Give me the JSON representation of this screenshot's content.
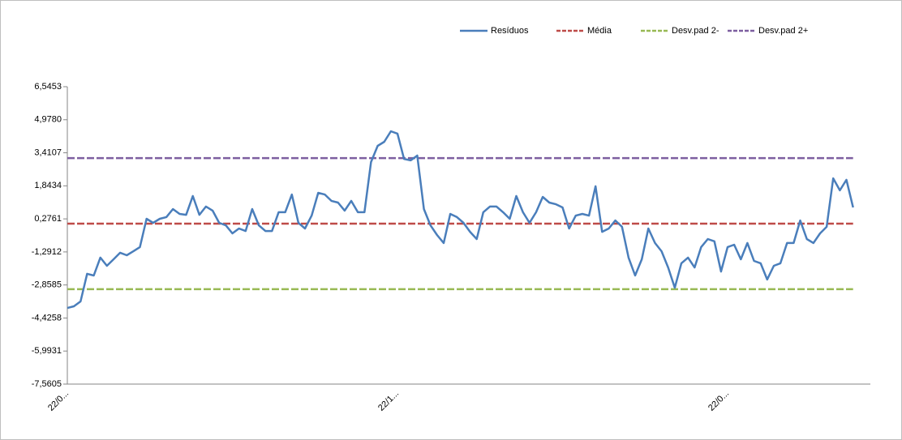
{
  "chart_data": {
    "type": "line",
    "categories": [
      "22/0...",
      null,
      null,
      null,
      null,
      null,
      null,
      null,
      null,
      null,
      null,
      null,
      null,
      null,
      null,
      null,
      null,
      null,
      null,
      null,
      null,
      null,
      null,
      null,
      null,
      null,
      null,
      null,
      null,
      null,
      null,
      null,
      null,
      null,
      null,
      null,
      null,
      null,
      null,
      null,
      null,
      null,
      null,
      null,
      null,
      null,
      null,
      null,
      null,
      null,
      "22/1...",
      null,
      null,
      null,
      null,
      null,
      null,
      null,
      null,
      null,
      null,
      null,
      null,
      null,
      null,
      null,
      null,
      null,
      null,
      null,
      null,
      null,
      null,
      null,
      null,
      null,
      null,
      null,
      null,
      null,
      null,
      null,
      null,
      null,
      null,
      null,
      null,
      null,
      null,
      null,
      null,
      null,
      null,
      null,
      null,
      null,
      null,
      null,
      null,
      null,
      "22/0...",
      null,
      null,
      null,
      null,
      null,
      null,
      null,
      null,
      null,
      null,
      null,
      null,
      null,
      null,
      null,
      null,
      null,
      null,
      null
    ],
    "series": [
      {
        "name": "Resíduos",
        "color": "#4a7ebb",
        "dashed": false,
        "values": [
          -3.95,
          -3.87,
          -3.64,
          -2.33,
          -2.41,
          -1.56,
          -1.95,
          -1.64,
          -1.33,
          -1.45,
          -1.26,
          -1.06,
          0.28,
          0.09,
          0.28,
          0.36,
          0.74,
          0.51,
          0.47,
          1.36,
          0.47,
          0.86,
          0.67,
          0.09,
          -0.03,
          -0.41,
          -0.18,
          -0.3,
          0.74,
          -0.03,
          -0.3,
          -0.3,
          0.59,
          0.59,
          1.43,
          0.09,
          -0.18,
          0.43,
          1.51,
          1.43,
          1.13,
          1.05,
          0.67,
          1.13,
          0.59,
          0.59,
          2.97,
          3.74,
          3.93,
          4.43,
          4.32,
          3.12,
          3.05,
          3.28,
          0.74,
          -0.03,
          -0.49,
          -0.87,
          0.51,
          0.36,
          0.09,
          -0.34,
          -0.68,
          0.59,
          0.86,
          0.86,
          0.59,
          0.28,
          1.36,
          0.59,
          0.09,
          0.59,
          1.32,
          1.05,
          0.97,
          0.82,
          -0.18,
          0.43,
          0.51,
          0.43,
          1.82,
          -0.34,
          -0.18,
          0.2,
          -0.1,
          -1.56,
          -2.41,
          -1.64,
          -0.18,
          -0.87,
          -1.26,
          -2.03,
          -2.99,
          -1.83,
          -1.56,
          -2.03,
          -1.06,
          -0.68,
          -0.79,
          -2.22,
          -1.06,
          -0.95,
          -1.64,
          -0.87,
          -1.72,
          -1.83,
          -2.6,
          -1.95,
          -1.83,
          -0.87,
          -0.87,
          0.2,
          -0.68,
          -0.87,
          -0.41,
          -0.1,
          2.2,
          1.63,
          2.13,
          0.82
        ]
      },
      {
        "name": "Média",
        "color": "#be4b48",
        "dashed": true,
        "values": [
          0.05,
          0.05,
          0.05,
          0.05,
          0.05,
          0.05,
          0.05,
          0.05,
          0.05,
          0.05,
          0.05,
          0.05,
          0.05,
          0.05,
          0.05,
          0.05,
          0.05,
          0.05,
          0.05,
          0.05,
          0.05,
          0.05,
          0.05,
          0.05,
          0.05,
          0.05,
          0.05,
          0.05,
          0.05,
          0.05,
          0.05,
          0.05,
          0.05,
          0.05,
          0.05,
          0.05,
          0.05,
          0.05,
          0.05,
          0.05,
          0.05,
          0.05,
          0.05,
          0.05,
          0.05,
          0.05,
          0.05,
          0.05,
          0.05,
          0.05,
          0.05,
          0.05,
          0.05,
          0.05,
          0.05,
          0.05,
          0.05,
          0.05,
          0.05,
          0.05,
          0.05,
          0.05,
          0.05,
          0.05,
          0.05,
          0.05,
          0.05,
          0.05,
          0.05,
          0.05,
          0.05,
          0.05,
          0.05,
          0.05,
          0.05,
          0.05,
          0.05,
          0.05,
          0.05,
          0.05,
          0.05,
          0.05,
          0.05,
          0.05,
          0.05,
          0.05,
          0.05,
          0.05,
          0.05,
          0.05,
          0.05,
          0.05,
          0.05,
          0.05,
          0.05,
          0.05,
          0.05,
          0.05,
          0.05,
          0.05,
          0.05,
          0.05,
          0.05,
          0.05,
          0.05,
          0.05,
          0.05,
          0.05,
          0.05,
          0.05,
          0.05,
          0.05,
          0.05,
          0.05,
          0.05,
          0.05,
          0.05,
          0.05,
          0.05,
          0.05
        ]
      },
      {
        "name": "Desv.pad 2-",
        "color": "#98b954",
        "dashed": true,
        "values": [
          -3.06,
          -3.06,
          -3.06,
          -3.06,
          -3.06,
          -3.06,
          -3.06,
          -3.06,
          -3.06,
          -3.06,
          -3.06,
          -3.06,
          -3.06,
          -3.06,
          -3.06,
          -3.06,
          -3.06,
          -3.06,
          -3.06,
          -3.06,
          -3.06,
          -3.06,
          -3.06,
          -3.06,
          -3.06,
          -3.06,
          -3.06,
          -3.06,
          -3.06,
          -3.06,
          -3.06,
          -3.06,
          -3.06,
          -3.06,
          -3.06,
          -3.06,
          -3.06,
          -3.06,
          -3.06,
          -3.06,
          -3.06,
          -3.06,
          -3.06,
          -3.06,
          -3.06,
          -3.06,
          -3.06,
          -3.06,
          -3.06,
          -3.06,
          -3.06,
          -3.06,
          -3.06,
          -3.06,
          -3.06,
          -3.06,
          -3.06,
          -3.06,
          -3.06,
          -3.06,
          -3.06,
          -3.06,
          -3.06,
          -3.06,
          -3.06,
          -3.06,
          -3.06,
          -3.06,
          -3.06,
          -3.06,
          -3.06,
          -3.06,
          -3.06,
          -3.06,
          -3.06,
          -3.06,
          -3.06,
          -3.06,
          -3.06,
          -3.06,
          -3.06,
          -3.06,
          -3.06,
          -3.06,
          -3.06,
          -3.06,
          -3.06,
          -3.06,
          -3.06,
          -3.06,
          -3.06,
          -3.06,
          -3.06,
          -3.06,
          -3.06,
          -3.06,
          -3.06,
          -3.06,
          -3.06,
          -3.06,
          -3.06,
          -3.06,
          -3.06,
          -3.06,
          -3.06,
          -3.06,
          -3.06,
          -3.06,
          -3.06,
          -3.06,
          -3.06,
          -3.06,
          -3.06,
          -3.06,
          -3.06,
          -3.06,
          -3.06,
          -3.06,
          -3.06,
          -3.06
        ]
      },
      {
        "name": "Desv.pad 2+",
        "color": "#7d5fa0",
        "dashed": true,
        "values": [
          3.16,
          3.16,
          3.16,
          3.16,
          3.16,
          3.16,
          3.16,
          3.16,
          3.16,
          3.16,
          3.16,
          3.16,
          3.16,
          3.16,
          3.16,
          3.16,
          3.16,
          3.16,
          3.16,
          3.16,
          3.16,
          3.16,
          3.16,
          3.16,
          3.16,
          3.16,
          3.16,
          3.16,
          3.16,
          3.16,
          3.16,
          3.16,
          3.16,
          3.16,
          3.16,
          3.16,
          3.16,
          3.16,
          3.16,
          3.16,
          3.16,
          3.16,
          3.16,
          3.16,
          3.16,
          3.16,
          3.16,
          3.16,
          3.16,
          3.16,
          3.16,
          3.16,
          3.16,
          3.16,
          3.16,
          3.16,
          3.16,
          3.16,
          3.16,
          3.16,
          3.16,
          3.16,
          3.16,
          3.16,
          3.16,
          3.16,
          3.16,
          3.16,
          3.16,
          3.16,
          3.16,
          3.16,
          3.16,
          3.16,
          3.16,
          3.16,
          3.16,
          3.16,
          3.16,
          3.16,
          3.16,
          3.16,
          3.16,
          3.16,
          3.16,
          3.16,
          3.16,
          3.16,
          3.16,
          3.16,
          3.16,
          3.16,
          3.16,
          3.16,
          3.16,
          3.16,
          3.16,
          3.16,
          3.16,
          3.16,
          3.16,
          3.16,
          3.16,
          3.16,
          3.16,
          3.16,
          3.16,
          3.16,
          3.16,
          3.16,
          3.16,
          3.16,
          3.16,
          3.16,
          3.16,
          3.16,
          3.16,
          3.16,
          3.16,
          3.16
        ]
      }
    ],
    "ylim": [
      -7.5605,
      6.5453
    ],
    "yticks": [
      {
        "value": 6.5453,
        "label": "6,5453"
      },
      {
        "value": 4.978,
        "label": "4,9780"
      },
      {
        "value": 3.4107,
        "label": "3,4107"
      },
      {
        "value": 1.8434,
        "label": "1,8434"
      },
      {
        "value": 0.2761,
        "label": "0,2761"
      },
      {
        "value": -1.2912,
        "label": "-1,2912"
      },
      {
        "value": -2.8585,
        "label": "-2,8585"
      },
      {
        "value": -4.4258,
        "label": "-4,4258"
      },
      {
        "value": -5.9931,
        "label": "-5,9931"
      },
      {
        "value": -7.5605,
        "label": "-7,5605"
      }
    ],
    "grid": false,
    "legend": "top-right"
  }
}
